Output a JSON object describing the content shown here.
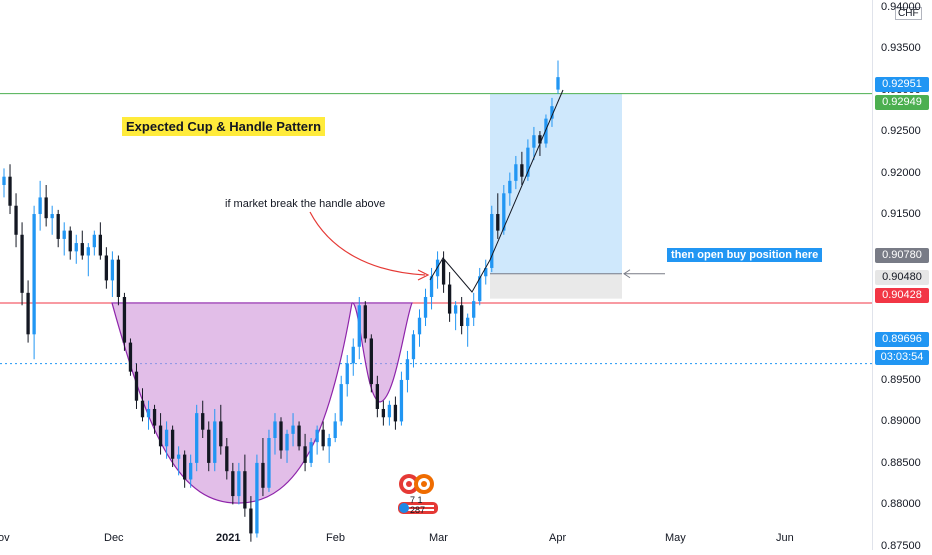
{
  "chart_data": {
    "type": "candlestick",
    "instrument_unit": "CHF",
    "x_ticks": [
      "ov",
      "Dec",
      "2021",
      "Feb",
      "Mar",
      "Apr",
      "May",
      "Jun"
    ],
    "y_ticks": [
      "0.87500",
      "0.88000",
      "0.88500",
      "0.89000",
      "0.89500",
      "0.90000",
      "0.90500",
      "0.91000",
      "0.91500",
      "0.92000",
      "0.92500",
      "0.93000",
      "0.93500",
      "0.94000"
    ],
    "ylim": [
      0.8745,
      0.9408
    ],
    "grid": false,
    "price_tags": [
      {
        "label": "0.92951",
        "color": "#2196f3"
      },
      {
        "label": "0.92949",
        "color": "#4caf50"
      },
      {
        "label": "0.90780",
        "color": "#787b86"
      },
      {
        "label": "0.90480",
        "color": "#e6e6e6"
      },
      {
        "label": "0.90428",
        "color": "#f23645"
      },
      {
        "label": "0.89696",
        "color": "#2196f3"
      },
      {
        "label": "03:03:54",
        "color": "#2196f3"
      }
    ],
    "horizontal_lines": [
      {
        "value": 0.92951,
        "color": "#4caf50",
        "style": "solid"
      },
      {
        "value": 0.90428,
        "color": "#f23645",
        "style": "solid"
      },
      {
        "value": 0.89696,
        "color": "#2196f3",
        "style": "dotted"
      }
    ],
    "candles": [
      [
        0.9185,
        0.9205,
        0.917,
        0.9195
      ],
      [
        0.9195,
        0.921,
        0.915,
        0.916
      ],
      [
        0.916,
        0.9175,
        0.911,
        0.9125
      ],
      [
        0.9125,
        0.914,
        0.904,
        0.9055
      ],
      [
        0.9055,
        0.907,
        0.8995,
        0.9005
      ],
      [
        0.9005,
        0.916,
        0.8975,
        0.915
      ],
      [
        0.915,
        0.919,
        0.913,
        0.917
      ],
      [
        0.917,
        0.9185,
        0.9135,
        0.9145
      ],
      [
        0.9145,
        0.916,
        0.9125,
        0.915
      ],
      [
        0.915,
        0.9155,
        0.911,
        0.912
      ],
      [
        0.912,
        0.914,
        0.91,
        0.913
      ],
      [
        0.913,
        0.9135,
        0.9095,
        0.9105
      ],
      [
        0.9105,
        0.9125,
        0.909,
        0.9115
      ],
      [
        0.9115,
        0.913,
        0.9095,
        0.91
      ],
      [
        0.91,
        0.9115,
        0.9075,
        0.911
      ],
      [
        0.911,
        0.913,
        0.91,
        0.9125
      ],
      [
        0.9125,
        0.914,
        0.9095,
        0.91
      ],
      [
        0.91,
        0.911,
        0.906,
        0.907
      ],
      [
        0.907,
        0.9105,
        0.905,
        0.9095
      ],
      [
        0.9095,
        0.91,
        0.904,
        0.905
      ],
      [
        0.905,
        0.9055,
        0.8985,
        0.8995
      ],
      [
        0.8995,
        0.9,
        0.8955,
        0.896
      ],
      [
        0.896,
        0.897,
        0.8915,
        0.8925
      ],
      [
        0.8925,
        0.894,
        0.89,
        0.8905
      ],
      [
        0.8905,
        0.8925,
        0.889,
        0.8915
      ],
      [
        0.8915,
        0.892,
        0.8885,
        0.8895
      ],
      [
        0.8895,
        0.891,
        0.886,
        0.887
      ],
      [
        0.887,
        0.89,
        0.8855,
        0.889
      ],
      [
        0.889,
        0.8895,
        0.8845,
        0.8855
      ],
      [
        0.8855,
        0.887,
        0.8835,
        0.886
      ],
      [
        0.886,
        0.8865,
        0.882,
        0.883
      ],
      [
        0.883,
        0.886,
        0.882,
        0.885
      ],
      [
        0.885,
        0.892,
        0.884,
        0.891
      ],
      [
        0.891,
        0.8925,
        0.888,
        0.889
      ],
      [
        0.889,
        0.89,
        0.884,
        0.885
      ],
      [
        0.885,
        0.8915,
        0.884,
        0.89
      ],
      [
        0.89,
        0.892,
        0.886,
        0.887
      ],
      [
        0.887,
        0.888,
        0.883,
        0.884
      ],
      [
        0.884,
        0.885,
        0.88,
        0.881
      ],
      [
        0.881,
        0.885,
        0.88,
        0.884
      ],
      [
        0.884,
        0.886,
        0.8785,
        0.8795
      ],
      [
        0.8795,
        0.881,
        0.8755,
        0.8765
      ],
      [
        0.8765,
        0.886,
        0.876,
        0.885
      ],
      [
        0.885,
        0.888,
        0.881,
        0.882
      ],
      [
        0.882,
        0.889,
        0.8815,
        0.888
      ],
      [
        0.888,
        0.891,
        0.886,
        0.89
      ],
      [
        0.89,
        0.8905,
        0.8855,
        0.8865
      ],
      [
        0.8865,
        0.889,
        0.885,
        0.8885
      ],
      [
        0.8885,
        0.891,
        0.887,
        0.8895
      ],
      [
        0.8895,
        0.89,
        0.8865,
        0.887
      ],
      [
        0.887,
        0.8885,
        0.884,
        0.885
      ],
      [
        0.885,
        0.888,
        0.8845,
        0.8875
      ],
      [
        0.8875,
        0.8895,
        0.886,
        0.889
      ],
      [
        0.889,
        0.89,
        0.8865,
        0.887
      ],
      [
        0.887,
        0.8885,
        0.885,
        0.888
      ],
      [
        0.888,
        0.891,
        0.8875,
        0.89
      ],
      [
        0.89,
        0.8955,
        0.8895,
        0.8945
      ],
      [
        0.8945,
        0.898,
        0.893,
        0.897
      ],
      [
        0.897,
        0.9,
        0.8955,
        0.899
      ],
      [
        0.899,
        0.905,
        0.8975,
        0.904
      ],
      [
        0.904,
        0.9045,
        0.8995,
        0.9
      ],
      [
        0.9,
        0.9005,
        0.8935,
        0.8945
      ],
      [
        0.8945,
        0.8955,
        0.8905,
        0.8915
      ],
      [
        0.8915,
        0.8925,
        0.8895,
        0.8905
      ],
      [
        0.8905,
        0.8925,
        0.8895,
        0.892
      ],
      [
        0.892,
        0.893,
        0.889,
        0.89
      ],
      [
        0.89,
        0.896,
        0.8895,
        0.895
      ],
      [
        0.895,
        0.8985,
        0.8935,
        0.8975
      ],
      [
        0.8975,
        0.901,
        0.8965,
        0.9005
      ],
      [
        0.9005,
        0.9035,
        0.899,
        0.9025
      ],
      [
        0.9025,
        0.906,
        0.9015,
        0.905
      ],
      [
        0.905,
        0.9085,
        0.9035,
        0.9075
      ],
      [
        0.9075,
        0.9105,
        0.906,
        0.9095
      ],
      [
        0.9095,
        0.9105,
        0.9055,
        0.9065
      ],
      [
        0.9065,
        0.908,
        0.902,
        0.903
      ],
      [
        0.903,
        0.9045,
        0.901,
        0.904
      ],
      [
        0.904,
        0.905,
        0.9005,
        0.9015
      ],
      [
        0.9015,
        0.903,
        0.899,
        0.9025
      ],
      [
        0.9025,
        0.9055,
        0.9015,
        0.9045
      ],
      [
        0.9045,
        0.9085,
        0.904,
        0.9075
      ],
      [
        0.9075,
        0.9095,
        0.9065,
        0.9085
      ],
      [
        0.9085,
        0.916,
        0.908,
        0.915
      ],
      [
        0.915,
        0.9175,
        0.912,
        0.913
      ],
      [
        0.913,
        0.9185,
        0.9125,
        0.9175
      ],
      [
        0.9175,
        0.92,
        0.916,
        0.919
      ],
      [
        0.919,
        0.922,
        0.918,
        0.921
      ],
      [
        0.921,
        0.9225,
        0.9185,
        0.9195
      ],
      [
        0.9195,
        0.924,
        0.919,
        0.923
      ],
      [
        0.923,
        0.9255,
        0.9215,
        0.9245
      ],
      [
        0.9245,
        0.925,
        0.922,
        0.9235
      ],
      [
        0.9235,
        0.927,
        0.923,
        0.9265
      ],
      [
        0.9265,
        0.929,
        0.9255,
        0.928
      ],
      [
        0.93,
        0.9335,
        0.9295,
        0.9315
      ]
    ],
    "annotations": [
      {
        "text": "Expected Cup & Handle Pattern"
      },
      {
        "text": "if market break the handle above"
      },
      {
        "text": "then open buy position here"
      }
    ],
    "logo_text": "7 1 287"
  }
}
